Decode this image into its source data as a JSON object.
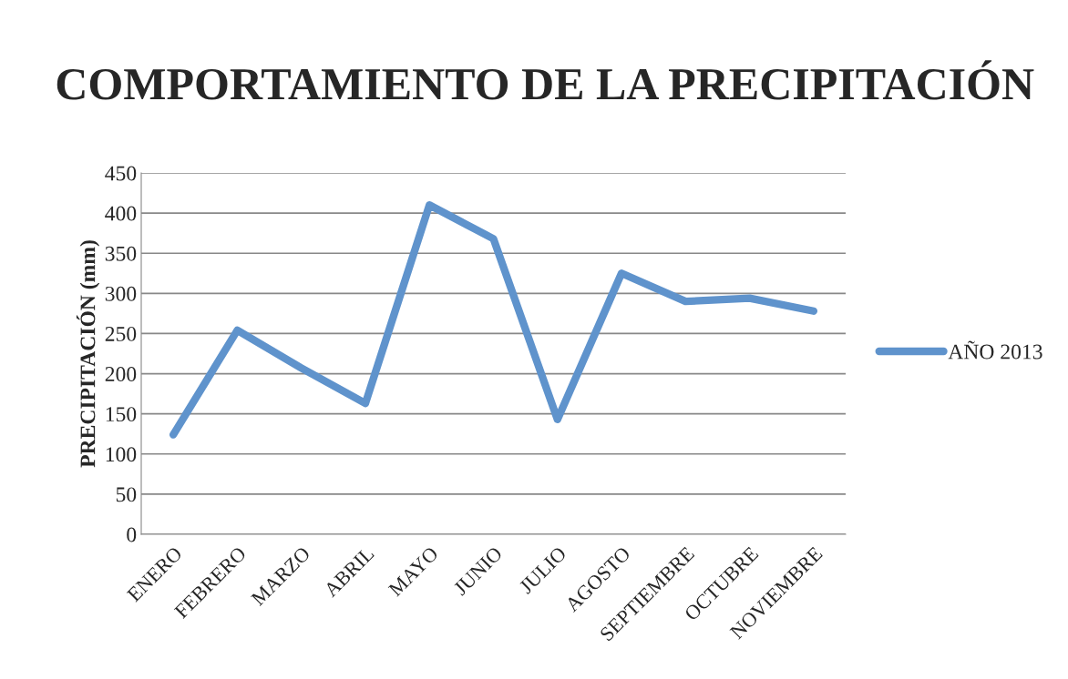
{
  "chart_data": {
    "type": "line",
    "title": "COMPORTAMIENTO DE LA PRECIPITACIÓN",
    "ylabel": "PRECIPITACIÓN (mm)",
    "categories": [
      "ENERO",
      "FEBRERO",
      "MARZO",
      "ABRIL",
      "MAYO",
      "JUNIO",
      "JULIO",
      "AGOSTO",
      "SEPTIEMBRE",
      "OCTUBRE",
      "NOVIEMBRE"
    ],
    "series": [
      {
        "name": "AÑO 2013",
        "color": "#5f93cc",
        "values": [
          124,
          254,
          207,
          163,
          410,
          368,
          143,
          325,
          290,
          294,
          278
        ]
      }
    ],
    "ylim": [
      0,
      450
    ],
    "yticks": [
      0,
      50,
      100,
      150,
      200,
      250,
      300,
      350,
      400,
      450
    ],
    "grid": "y",
    "legend": "right",
    "marker": "none",
    "line_style": "solid"
  }
}
